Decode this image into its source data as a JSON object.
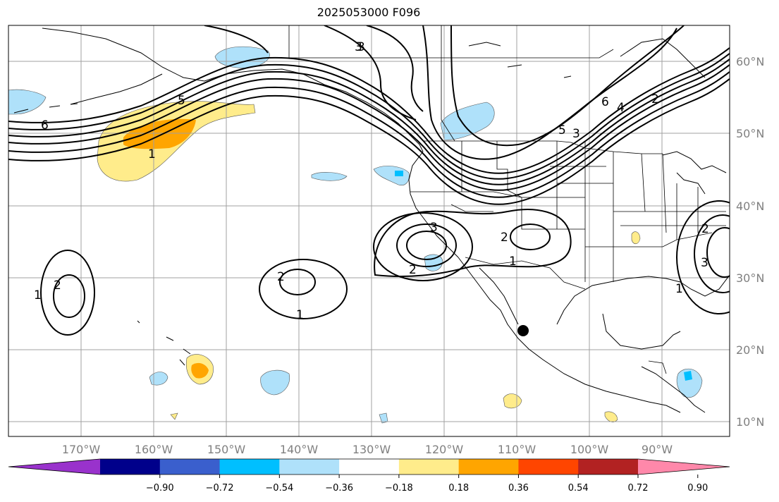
{
  "title": "2025053000 F096",
  "map": {
    "lon_labels": [
      "170°W",
      "160°W",
      "150°W",
      "140°W",
      "130°W",
      "120°W",
      "110°W",
      "100°W",
      "90°W"
    ],
    "lat_labels": [
      "60°N",
      "50°N",
      "40°N",
      "30°N",
      "20°N",
      "10°N"
    ],
    "contour_labels": [
      "6",
      "5",
      "1",
      "3",
      "3",
      "6",
      "4",
      "2",
      "5",
      "3",
      "3",
      "2",
      "2",
      "1",
      "2",
      "1",
      "2",
      "1",
      "1",
      "3",
      "2"
    ]
  },
  "colorbar": {
    "ticks": [
      "−0.90",
      "−0.72",
      "−0.54",
      "−0.36",
      "−0.18",
      "0.18",
      "0.36",
      "0.54",
      "0.72",
      "0.90"
    ],
    "colors": [
      "#9932cc",
      "#00008b",
      "#3a5fcd",
      "#00bfff",
      "#afe1fa",
      "#ffffff",
      "#ffec8b",
      "#ffa500",
      "#ff4500",
      "#b22222",
      "#ff88aa"
    ]
  }
}
